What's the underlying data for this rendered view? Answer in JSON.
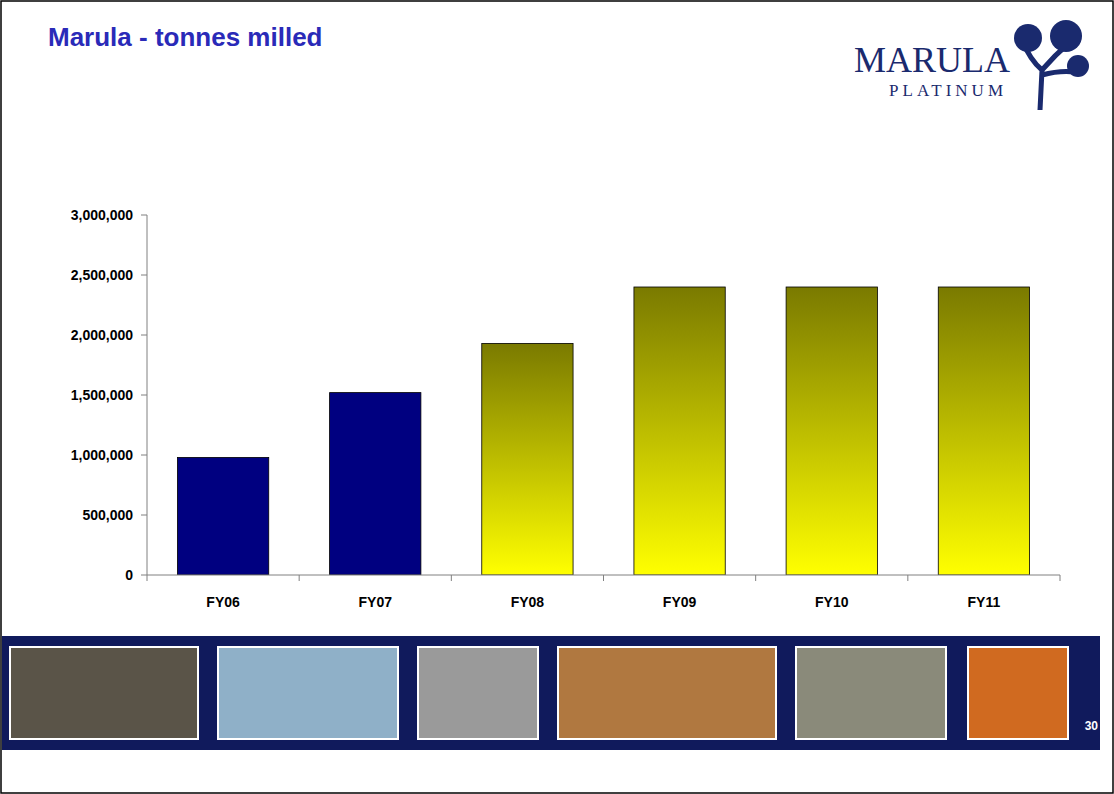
{
  "chart_data": {
    "type": "bar",
    "title": "Marula - tonnes milled",
    "categories": [
      "FY06",
      "FY07",
      "FY08",
      "FY09",
      "FY10",
      "FY11"
    ],
    "values": [
      980000,
      1520000,
      1930000,
      2400000,
      2400000,
      2400000
    ],
    "colors": [
      "#000080",
      "#000080",
      "#7a7a00",
      "#7a7a00",
      "#7a7a00",
      "#7a7a00"
    ],
    "ylim": [
      0,
      3000000
    ],
    "yticks": [
      0,
      {
        "value": 500000,
        "label": "500,000"
      },
      {
        "value": 1000000,
        "label": "1,000,000"
      },
      {
        "value": 1500000,
        "label": "1,500,000"
      },
      {
        "value": 2000000,
        "label": "2,000,000"
      },
      {
        "value": 2500000,
        "label": "2,500,000"
      },
      {
        "value": 3000000,
        "label": "3,000,000"
      }
    ],
    "grid": false
  },
  "logo": {
    "name": "MARULA",
    "subtitle": "PLATINUM"
  },
  "page_number": "30"
}
